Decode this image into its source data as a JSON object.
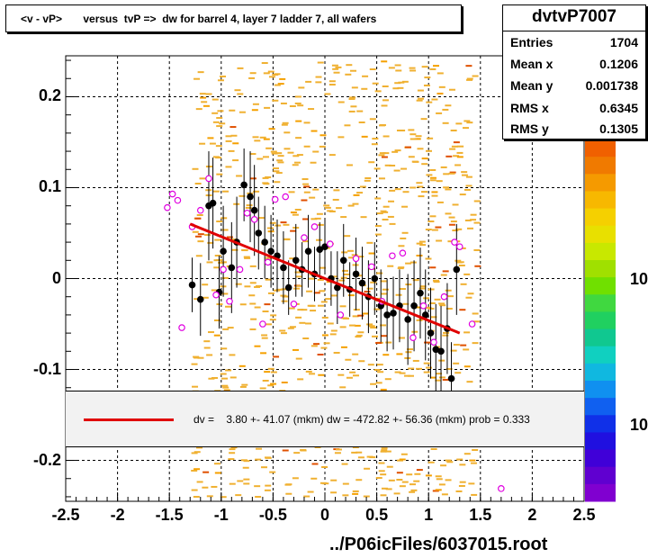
{
  "title": "<v - vP>       versus  tvP =>  dw for barrel 4, layer 7 ladder 7, all wafers",
  "stats": {
    "name": "dvtvP7007",
    "rows": [
      {
        "label": "Entries",
        "value": "1704"
      },
      {
        "label": "Mean x",
        "value": "0.1206"
      },
      {
        "label": "Mean y",
        "value": "0.001738"
      },
      {
        "label": "RMS x",
        "value": "0.6345"
      },
      {
        "label": "RMS y",
        "value": "0.1305"
      }
    ]
  },
  "fit_legend": "dv =    3.80 +- 41.07 (mkm) dw = -472.82 +- 56.36 (mkm) prob = 0.333",
  "footer": "../P06icFiles/6037015.root",
  "colors": {
    "fit": "#e00000",
    "profile": "#000000",
    "open_marker": "#e000e0"
  },
  "chart_data": {
    "type": "scatter",
    "xlim": [
      -2.5,
      2.5
    ],
    "ylim": [
      -0.245,
      0.245
    ],
    "x_ticks": [
      "-2.5",
      "-2",
      "-1.5",
      "-1",
      "-0.5",
      "0",
      "0.5",
      "1",
      "1.5",
      "2",
      "2.5"
    ],
    "y_ticks": [
      "0.2",
      "0.1",
      "0",
      "-0.1",
      "-0.2"
    ],
    "z_ticks": [
      "10",
      "10"
    ],
    "grid": true,
    "fit_line": {
      "x": [
        -1.3,
        1.3
      ],
      "y": [
        0.06,
        -0.06
      ]
    },
    "profile_points": [
      {
        "x": -1.28,
        "y": -0.007,
        "err": 0.03
      },
      {
        "x": -1.2,
        "y": -0.023,
        "err": 0.04
      },
      {
        "x": -1.12,
        "y": 0.08,
        "err": 0.06
      },
      {
        "x": -1.08,
        "y": 0.083,
        "err": 0.05
      },
      {
        "x": -1.02,
        "y": -0.015,
        "err": 0.04
      },
      {
        "x": -0.98,
        "y": 0.03,
        "err": 0.05
      },
      {
        "x": -0.9,
        "y": 0.012,
        "err": 0.05
      },
      {
        "x": -0.85,
        "y": 0.04,
        "err": 0.05
      },
      {
        "x": -0.78,
        "y": 0.103,
        "err": 0.04
      },
      {
        "x": -0.72,
        "y": 0.09,
        "err": 0.05
      },
      {
        "x": -0.68,
        "y": 0.075,
        "err": 0.05
      },
      {
        "x": -0.64,
        "y": 0.05,
        "err": 0.04
      },
      {
        "x": -0.58,
        "y": 0.04,
        "err": 0.04
      },
      {
        "x": -0.52,
        "y": 0.03,
        "err": 0.04
      },
      {
        "x": -0.46,
        "y": 0.025,
        "err": 0.04
      },
      {
        "x": -0.4,
        "y": 0.012,
        "err": 0.04
      },
      {
        "x": -0.35,
        "y": -0.01,
        "err": 0.03
      },
      {
        "x": -0.28,
        "y": 0.02,
        "err": 0.04
      },
      {
        "x": -0.22,
        "y": 0.01,
        "err": 0.03
      },
      {
        "x": -0.16,
        "y": 0.03,
        "err": 0.04
      },
      {
        "x": -0.1,
        "y": 0.005,
        "err": 0.03
      },
      {
        "x": -0.05,
        "y": 0.032,
        "err": 0.03
      },
      {
        "x": 0.0,
        "y": 0.035,
        "err": 0.03
      },
      {
        "x": 0.06,
        "y": 0.0,
        "err": 0.03
      },
      {
        "x": 0.12,
        "y": -0.01,
        "err": 0.04
      },
      {
        "x": 0.18,
        "y": 0.02,
        "err": 0.04
      },
      {
        "x": 0.24,
        "y": -0.012,
        "err": 0.03
      },
      {
        "x": 0.3,
        "y": 0.005,
        "err": 0.04
      },
      {
        "x": 0.36,
        "y": -0.005,
        "err": 0.04
      },
      {
        "x": 0.42,
        "y": -0.02,
        "err": 0.04
      },
      {
        "x": 0.48,
        "y": 0.0,
        "err": 0.04
      },
      {
        "x": 0.54,
        "y": -0.03,
        "err": 0.04
      },
      {
        "x": 0.6,
        "y": -0.04,
        "err": 0.04
      },
      {
        "x": 0.66,
        "y": -0.038,
        "err": 0.04
      },
      {
        "x": 0.72,
        "y": -0.03,
        "err": 0.04
      },
      {
        "x": 0.8,
        "y": -0.045,
        "err": 0.05
      },
      {
        "x": 0.86,
        "y": -0.03,
        "err": 0.05
      },
      {
        "x": 0.92,
        "y": -0.016,
        "err": 0.05
      },
      {
        "x": 0.97,
        "y": -0.04,
        "err": 0.05
      },
      {
        "x": 1.02,
        "y": -0.06,
        "err": 0.05
      },
      {
        "x": 1.07,
        "y": -0.078,
        "err": 0.05
      },
      {
        "x": 1.12,
        "y": -0.08,
        "err": 0.05
      },
      {
        "x": 1.18,
        "y": -0.055,
        "err": 0.05
      },
      {
        "x": 1.22,
        "y": -0.11,
        "err": 0.04
      },
      {
        "x": 1.27,
        "y": 0.01,
        "err": 0.05
      }
    ],
    "open_points": [
      {
        "x": -1.52,
        "y": 0.078
      },
      {
        "x": -1.47,
        "y": 0.093
      },
      {
        "x": -1.42,
        "y": 0.086
      },
      {
        "x": -1.38,
        "y": -0.054
      },
      {
        "x": -1.28,
        "y": 0.057
      },
      {
        "x": -1.2,
        "y": 0.075
      },
      {
        "x": -1.12,
        "y": 0.11
      },
      {
        "x": -1.05,
        "y": -0.018
      },
      {
        "x": -0.98,
        "y": 0.01
      },
      {
        "x": -0.92,
        "y": -0.025
      },
      {
        "x": -0.82,
        "y": 0.01
      },
      {
        "x": -0.75,
        "y": 0.072
      },
      {
        "x": -0.68,
        "y": 0.065
      },
      {
        "x": -0.6,
        "y": -0.05
      },
      {
        "x": -0.55,
        "y": 0.018
      },
      {
        "x": -0.48,
        "y": 0.087
      },
      {
        "x": -0.38,
        "y": 0.09
      },
      {
        "x": -0.3,
        "y": -0.028
      },
      {
        "x": -0.2,
        "y": 0.045
      },
      {
        "x": -0.1,
        "y": 0.057
      },
      {
        "x": 0.05,
        "y": 0.038
      },
      {
        "x": 0.15,
        "y": -0.04
      },
      {
        "x": 0.3,
        "y": 0.022
      },
      {
        "x": 0.45,
        "y": 0.013
      },
      {
        "x": 0.55,
        "y": -0.025
      },
      {
        "x": 0.65,
        "y": 0.025
      },
      {
        "x": 0.75,
        "y": 0.028
      },
      {
        "x": 0.85,
        "y": -0.065
      },
      {
        "x": 0.95,
        "y": -0.03
      },
      {
        "x": 1.05,
        "y": -0.07
      },
      {
        "x": 1.15,
        "y": -0.02
      },
      {
        "x": 1.25,
        "y": 0.04
      },
      {
        "x": 1.3,
        "y": 0.035
      },
      {
        "x": 1.42,
        "y": -0.05
      },
      {
        "x": 1.7,
        "y": -0.231
      }
    ]
  }
}
